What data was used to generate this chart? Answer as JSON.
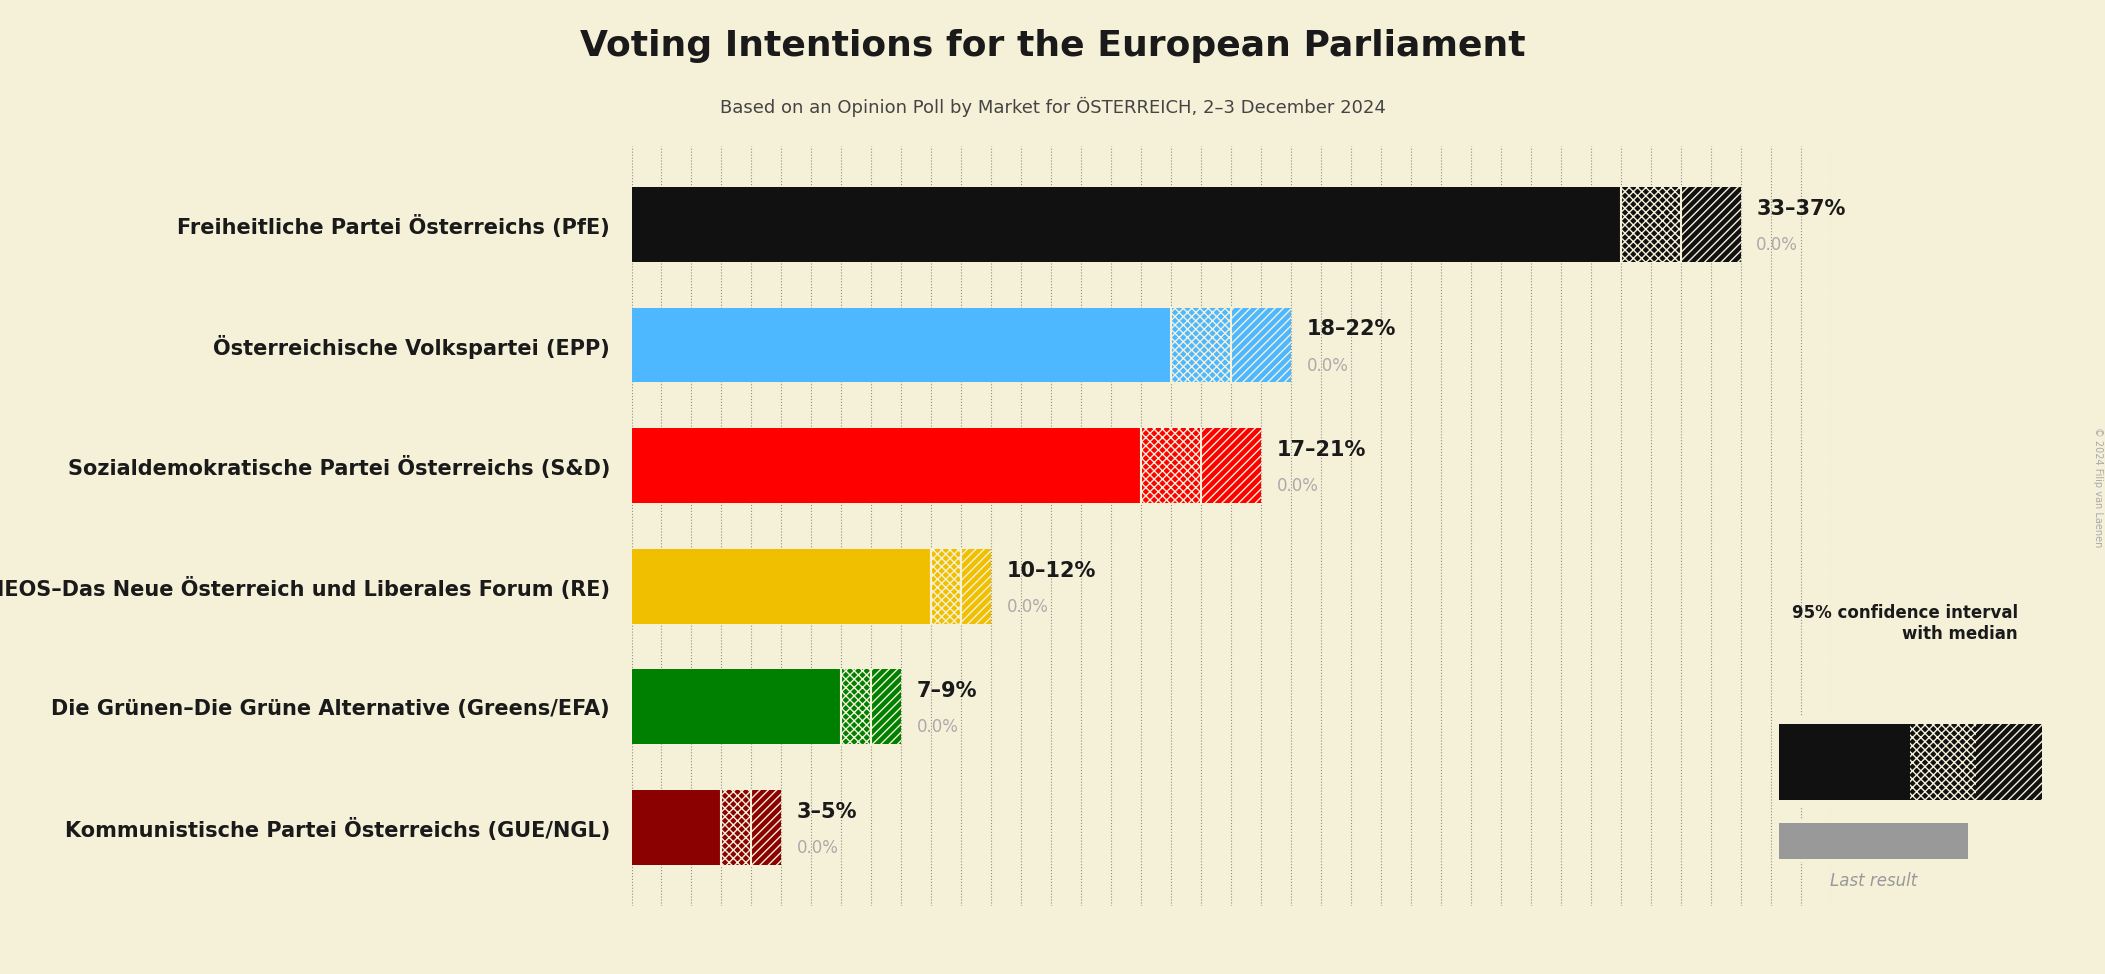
{
  "title": "Voting Intentions for the European Parliament",
  "subtitle": "Based on an Opinion Poll by Market for ÖSTERREICH, 2–3 December 2024",
  "copyright": "© 2024 Filip van Laenen",
  "background_color": "#f5f0d8",
  "parties": [
    {
      "name": "Freiheitliche Partei Österreichs (PfE)",
      "median": 35,
      "low": 33,
      "high": 37,
      "last_result": 0.0,
      "color": "#111111",
      "label": "33–37%"
    },
    {
      "name": "Österreichische Volkspartei (EPP)",
      "median": 20,
      "low": 18,
      "high": 22,
      "last_result": 0.0,
      "color": "#4db8ff",
      "label": "18–22%"
    },
    {
      "name": "Sozialdemokratische Partei Österreichs (S&D)",
      "median": 19,
      "low": 17,
      "high": 21,
      "last_result": 0.0,
      "color": "#ff0000",
      "label": "17–21%"
    },
    {
      "name": "NEOS–Das Neue Österreich und Liberales Forum (RE)",
      "median": 11,
      "low": 10,
      "high": 12,
      "last_result": 0.0,
      "color": "#f0c000",
      "label": "10–12%"
    },
    {
      "name": "Die Grünen–Die Grüne Alternative (Greens/EFA)",
      "median": 8,
      "low": 7,
      "high": 9,
      "last_result": 0.0,
      "color": "#008000",
      "label": "7–9%"
    },
    {
      "name": "Kommunistische Partei Österreichs (GUE/NGL)",
      "median": 4,
      "low": 3,
      "high": 5,
      "last_result": 0.0,
      "color": "#8b0000",
      "label": "3–5%"
    }
  ],
  "xlim_max": 40,
  "bar_height": 0.62,
  "label_fontsize": 15,
  "range_fontsize": 15,
  "last_result_fontsize": 12,
  "title_fontsize": 26,
  "subtitle_fontsize": 13
}
